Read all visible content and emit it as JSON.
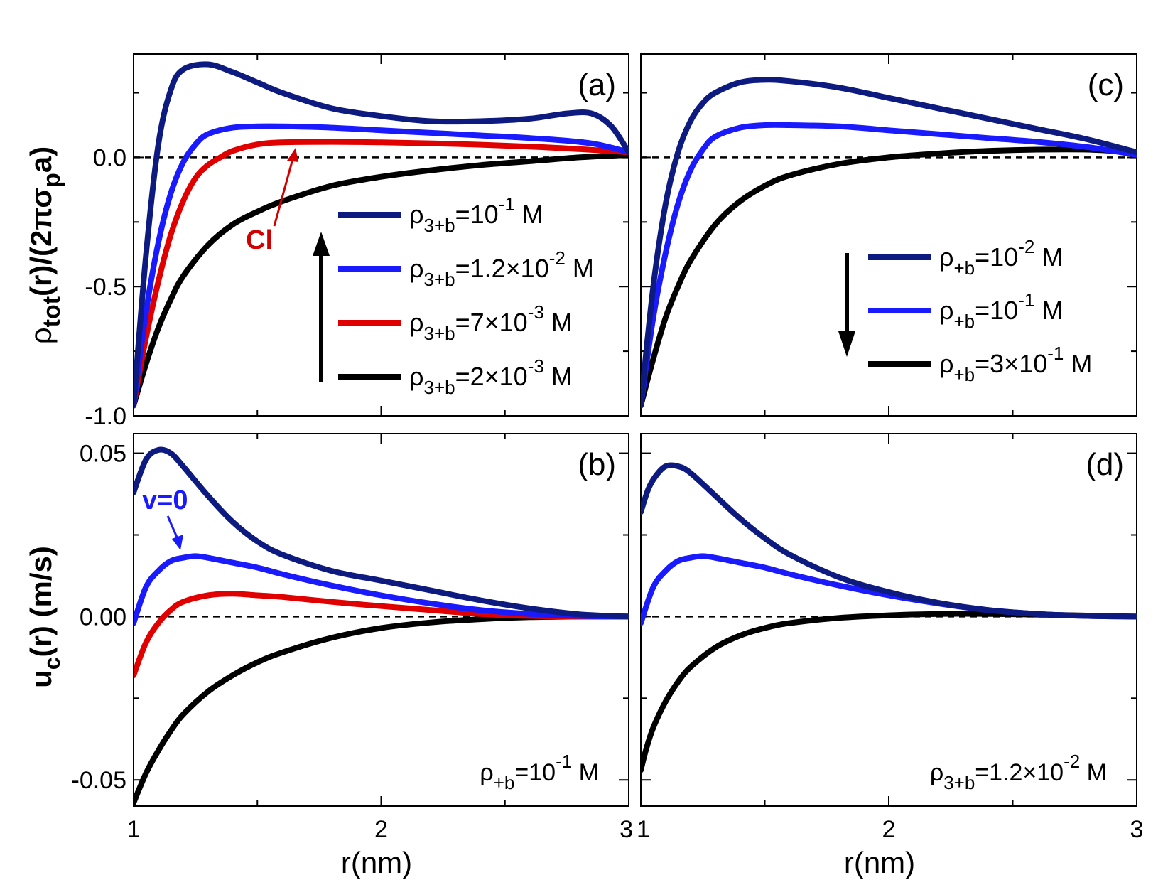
{
  "figure": {
    "x_axis_title": "r(nm)",
    "left_top_ylabel": {
      "main": "ρ",
      "sub": "tot",
      "part2": "(r)/(2πσ",
      "sub2": "p",
      "part3": "a)"
    },
    "left_bottom_ylabel": {
      "main": "u",
      "sub": "c",
      "part2": "(r) (m/s)"
    }
  },
  "chart_data": [
    {
      "panel": "(a)",
      "type": "line",
      "xlim": [
        1,
        3
      ],
      "ylim": [
        -1.0,
        0.4
      ],
      "xticks": [
        "1",
        "2",
        "3"
      ],
      "yticks": [
        "-1.0",
        "-0.5",
        "0.0"
      ],
      "xlabel": "r(nm)",
      "ylabel": "ρtot(r)/(2πσpa)",
      "reference_line": 0.0,
      "legend": [
        {
          "base": "ρ",
          "sub": "3+b",
          "eq": "=10",
          "sup": "-1",
          "unit": " M",
          "color": "#0d1a80"
        },
        {
          "base": "ρ",
          "sub": "3+b",
          "eq": "=1.2×10",
          "sup": "-2",
          "unit": " M",
          "color": "#1a1aff"
        },
        {
          "base": "ρ",
          "sub": "3+b",
          "eq": "=7×10",
          "sup": "-3",
          "unit": " M",
          "color": "#e00000"
        },
        {
          "base": "ρ",
          "sub": "3+b",
          "eq": "=2×10",
          "sup": "-3",
          "unit": " M",
          "color": "#000000"
        }
      ],
      "annotation": "Cl",
      "series": [
        {
          "name": "ρ3+b=10^-1 M",
          "color": "#0d1a80",
          "x": [
            1.0,
            1.05,
            1.1,
            1.15,
            1.2,
            1.3,
            1.4,
            1.5,
            1.6,
            1.8,
            2.0,
            2.2,
            2.4,
            2.6,
            2.75,
            2.85,
            2.93,
            3.0
          ],
          "y": [
            -0.96,
            -0.38,
            0.05,
            0.26,
            0.34,
            0.36,
            0.33,
            0.29,
            0.25,
            0.19,
            0.16,
            0.14,
            0.14,
            0.15,
            0.17,
            0.17,
            0.12,
            0.02
          ]
        },
        {
          "name": "ρ3+b=1.2×10^-2 M",
          "color": "#1a1aff",
          "x": [
            1.0,
            1.05,
            1.1,
            1.15,
            1.2,
            1.25,
            1.3,
            1.4,
            1.5,
            1.6,
            1.8,
            2.0,
            2.2,
            2.4,
            2.6,
            2.8,
            2.9,
            3.0
          ],
          "y": [
            -0.96,
            -0.6,
            -0.33,
            -0.14,
            -0.02,
            0.05,
            0.09,
            0.115,
            0.12,
            0.12,
            0.115,
            0.105,
            0.095,
            0.085,
            0.075,
            0.06,
            0.045,
            0.02
          ]
        },
        {
          "name": "ρ3+b=7×10^-3 M",
          "color": "#e00000",
          "x": [
            1.0,
            1.05,
            1.1,
            1.15,
            1.2,
            1.25,
            1.3,
            1.35,
            1.4,
            1.5,
            1.6,
            1.8,
            2.0,
            2.3,
            2.6,
            2.8,
            3.0
          ],
          "y": [
            -0.96,
            -0.7,
            -0.48,
            -0.3,
            -0.17,
            -0.08,
            -0.03,
            0.0,
            0.025,
            0.05,
            0.058,
            0.06,
            0.058,
            0.052,
            0.042,
            0.032,
            0.02
          ]
        },
        {
          "name": "ρ3+b=2×10^-3 M",
          "color": "#000000",
          "x": [
            1.0,
            1.05,
            1.1,
            1.15,
            1.2,
            1.3,
            1.4,
            1.5,
            1.6,
            1.8,
            2.0,
            2.2,
            2.4,
            2.6,
            2.8,
            3.0
          ],
          "y": [
            -0.96,
            -0.8,
            -0.66,
            -0.55,
            -0.46,
            -0.34,
            -0.26,
            -0.21,
            -0.17,
            -0.11,
            -0.075,
            -0.05,
            -0.03,
            -0.015,
            0.0,
            0.01
          ]
        }
      ]
    },
    {
      "panel": "(b)",
      "type": "line",
      "xlim": [
        1,
        3
      ],
      "ylim": [
        -0.058,
        0.056
      ],
      "xticks": [
        "1",
        "2",
        "3"
      ],
      "yticks": [
        "-0.05",
        "0.00",
        "0.05"
      ],
      "xlabel": "r(nm)",
      "ylabel": "uc(r) (m/s)",
      "reference_line": 0.0,
      "note": {
        "base": "ρ",
        "sub": "+b",
        "eq": "=10",
        "sup": "-1",
        "unit": " M"
      },
      "annotation": "v=0",
      "series": [
        {
          "name": "ρ3+b=10^-1 M",
          "color": "#0d1a80",
          "x": [
            1.0,
            1.05,
            1.1,
            1.15,
            1.2,
            1.3,
            1.4,
            1.5,
            1.6,
            1.8,
            2.0,
            2.2,
            2.4,
            2.6,
            2.8,
            3.0
          ],
          "y": [
            0.038,
            0.048,
            0.051,
            0.05,
            0.046,
            0.037,
            0.029,
            0.023,
            0.019,
            0.014,
            0.011,
            0.008,
            0.005,
            0.0025,
            0.0007,
            0.0
          ]
        },
        {
          "name": "ρ3+b=1.2×10^-2 M",
          "color": "#1a1aff",
          "x": [
            1.0,
            1.05,
            1.1,
            1.15,
            1.2,
            1.25,
            1.3,
            1.4,
            1.5,
            1.6,
            1.8,
            2.0,
            2.2,
            2.4,
            2.6,
            2.8,
            3.0
          ],
          "y": [
            -0.002,
            0.009,
            0.014,
            0.017,
            0.018,
            0.0185,
            0.018,
            0.0165,
            0.015,
            0.013,
            0.0095,
            0.0065,
            0.004,
            0.002,
            0.0008,
            0.0002,
            0.0
          ]
        },
        {
          "name": "ρ3+b=7×10^-3 M",
          "color": "#e00000",
          "x": [
            1.0,
            1.05,
            1.1,
            1.15,
            1.2,
            1.3,
            1.4,
            1.5,
            1.6,
            1.8,
            2.0,
            2.2,
            2.4,
            2.6,
            2.8,
            3.0
          ],
          "y": [
            -0.018,
            -0.008,
            -0.002,
            0.002,
            0.0045,
            0.0065,
            0.007,
            0.0065,
            0.006,
            0.0045,
            0.0032,
            0.002,
            0.0008,
            0.0002,
            0.0,
            0.0
          ]
        },
        {
          "name": "ρ3+b=2×10^-3 M",
          "color": "#000000",
          "x": [
            1.0,
            1.05,
            1.1,
            1.15,
            1.2,
            1.3,
            1.4,
            1.5,
            1.6,
            1.8,
            2.0,
            2.2,
            2.4,
            2.6,
            2.8,
            3.0
          ],
          "y": [
            -0.057,
            -0.048,
            -0.041,
            -0.035,
            -0.03,
            -0.023,
            -0.018,
            -0.014,
            -0.011,
            -0.0065,
            -0.0035,
            -0.0018,
            -0.0008,
            -0.0002,
            0.0,
            0.0
          ]
        }
      ]
    },
    {
      "panel": "(c)",
      "type": "line",
      "xlim": [
        1,
        3
      ],
      "ylim": [
        -1.0,
        0.4
      ],
      "xticks": [
        "1",
        "2",
        "3"
      ],
      "yticks": [],
      "xlabel": "r(nm)",
      "reference_line": 0.0,
      "legend": [
        {
          "base": "ρ",
          "sub": "+b",
          "eq": "=10",
          "sup": "-2",
          "unit": " M",
          "color": "#0d1a80"
        },
        {
          "base": "ρ",
          "sub": "+b",
          "eq": "=10",
          "sup": "-1",
          "unit": " M",
          "color": "#1a1aff"
        },
        {
          "base": "ρ",
          "sub": "+b",
          "eq": "=3×10",
          "sup": "-1",
          "unit": " M",
          "color": "#000000"
        }
      ],
      "series": [
        {
          "name": "ρ+b=10^-2 M",
          "color": "#0d1a80",
          "x": [
            1.0,
            1.05,
            1.1,
            1.15,
            1.2,
            1.25,
            1.3,
            1.4,
            1.5,
            1.6,
            1.8,
            2.0,
            2.2,
            2.4,
            2.6,
            2.8,
            3.0
          ],
          "y": [
            -0.96,
            -0.5,
            -0.18,
            0.02,
            0.14,
            0.21,
            0.25,
            0.29,
            0.3,
            0.295,
            0.27,
            0.23,
            0.19,
            0.15,
            0.11,
            0.07,
            0.02
          ]
        },
        {
          "name": "ρ+b=10^-1 M",
          "color": "#1a1aff",
          "x": [
            1.0,
            1.05,
            1.1,
            1.15,
            1.2,
            1.25,
            1.3,
            1.4,
            1.5,
            1.6,
            1.8,
            2.0,
            2.2,
            2.4,
            2.6,
            2.8,
            3.0
          ],
          "y": [
            -0.96,
            -0.62,
            -0.37,
            -0.18,
            -0.05,
            0.03,
            0.08,
            0.115,
            0.125,
            0.125,
            0.12,
            0.105,
            0.09,
            0.075,
            0.06,
            0.04,
            0.01
          ]
        },
        {
          "name": "ρ+b=3×10^-1 M",
          "color": "#000000",
          "x": [
            1.0,
            1.05,
            1.1,
            1.15,
            1.2,
            1.3,
            1.4,
            1.5,
            1.6,
            1.8,
            2.0,
            2.2,
            2.4,
            2.6,
            2.8,
            3.0
          ],
          "y": [
            -0.96,
            -0.78,
            -0.62,
            -0.5,
            -0.4,
            -0.26,
            -0.17,
            -0.11,
            -0.07,
            -0.025,
            0.0,
            0.015,
            0.025,
            0.03,
            0.03,
            0.02
          ]
        }
      ]
    },
    {
      "panel": "(d)",
      "type": "line",
      "xlim": [
        1,
        3
      ],
      "ylim": [
        -0.058,
        0.056
      ],
      "xticks": [
        "1",
        "2",
        "3"
      ],
      "yticks": [],
      "xlabel": "r(nm)",
      "reference_line": 0.0,
      "note": {
        "base": "ρ",
        "sub": "3+b",
        "eq": "=1.2×10",
        "sup": "-2",
        "unit": " M"
      },
      "series": [
        {
          "name": "ρ+b=10^-2 M",
          "color": "#0d1a80",
          "x": [
            1.0,
            1.03,
            1.06,
            1.1,
            1.15,
            1.2,
            1.3,
            1.4,
            1.5,
            1.6,
            1.8,
            2.0,
            2.2,
            2.4,
            2.6,
            2.8,
            3.0
          ],
          "y": [
            0.032,
            0.039,
            0.043,
            0.046,
            0.046,
            0.044,
            0.037,
            0.03,
            0.024,
            0.019,
            0.012,
            0.0075,
            0.0042,
            0.002,
            0.0008,
            0.0002,
            0.0
          ]
        },
        {
          "name": "ρ+b=10^-1 M",
          "color": "#1a1aff",
          "x": [
            1.0,
            1.05,
            1.1,
            1.15,
            1.2,
            1.25,
            1.3,
            1.4,
            1.5,
            1.6,
            1.8,
            2.0,
            2.2,
            2.4,
            2.6,
            2.8,
            3.0
          ],
          "y": [
            -0.002,
            0.009,
            0.014,
            0.017,
            0.018,
            0.0185,
            0.018,
            0.0165,
            0.015,
            0.013,
            0.0095,
            0.0065,
            0.004,
            0.002,
            0.0008,
            0.0002,
            0.0
          ]
        },
        {
          "name": "ρ+b=3×10^-1 M",
          "color": "#000000",
          "x": [
            1.0,
            1.02,
            1.05,
            1.1,
            1.15,
            1.2,
            1.3,
            1.4,
            1.5,
            1.6,
            1.8,
            2.0,
            2.2,
            2.4,
            2.6,
            2.8,
            3.0
          ],
          "y": [
            -0.047,
            -0.041,
            -0.034,
            -0.026,
            -0.02,
            -0.0155,
            -0.0095,
            -0.0058,
            -0.0035,
            -0.002,
            -0.0004,
            0.0004,
            0.0008,
            0.0008,
            0.0006,
            0.0003,
            0.0
          ]
        }
      ]
    }
  ]
}
